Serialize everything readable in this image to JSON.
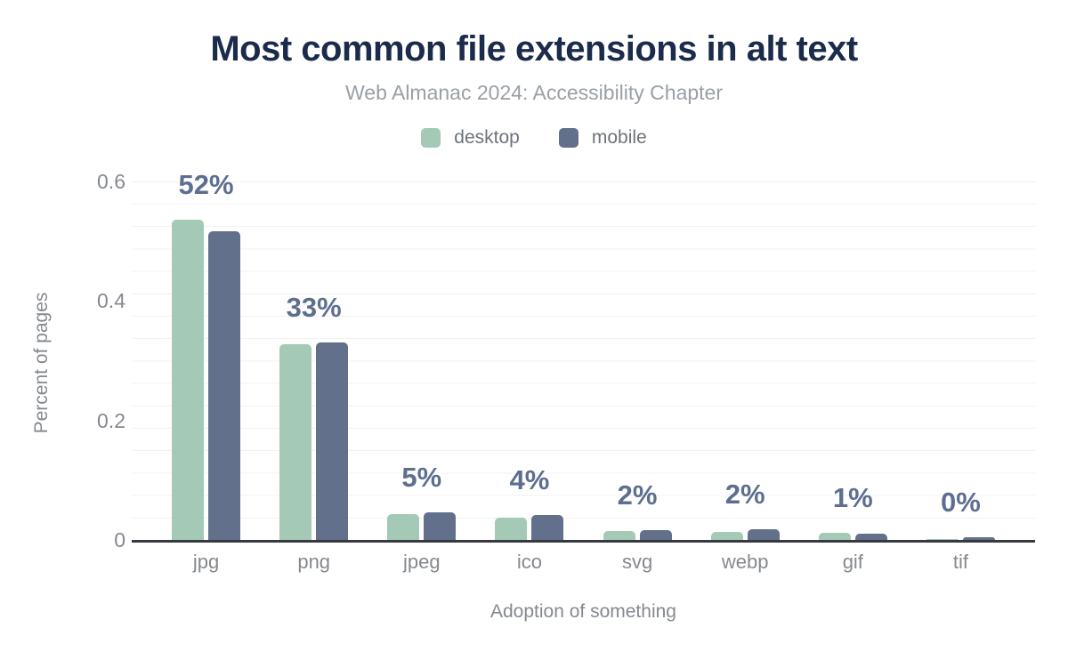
{
  "header": {
    "title": "Most common file extensions in alt text",
    "subtitle": "Web Almanac 2024: Accessibility Chapter"
  },
  "colors": {
    "title_text": "#1b2b4b",
    "subtitle_text": "#9aa0a6",
    "axis_text": "#85898f",
    "legend_text": "#6d737b",
    "value_label_text": "#5d6f91",
    "desktop_bar": "#a4c9b6",
    "mobile_bar": "#62708c",
    "axis_line": "#36393f",
    "gridline": "#f1f1f1"
  },
  "chart_data": {
    "type": "bar",
    "title": "Most common file extensions in alt text",
    "subtitle": "Web Almanac 2024: Accessibility Chapter",
    "categories": [
      "jpg",
      "png",
      "jpeg",
      "ico",
      "svg",
      "webp",
      "gif",
      "tif"
    ],
    "series": [
      {
        "name": "desktop",
        "color": "#a4c9b6",
        "values": [
          0.536,
          0.328,
          0.043,
          0.037,
          0.015,
          0.013,
          0.012,
          0.001
        ]
      },
      {
        "name": "mobile",
        "color": "#62708c",
        "values": [
          0.517,
          0.331,
          0.046,
          0.042,
          0.016,
          0.018,
          0.01,
          0.004
        ]
      }
    ],
    "bar_labels": [
      "52%",
      "33%",
      "5%",
      "4%",
      "2%",
      "2%",
      "1%",
      "0%"
    ],
    "xlabel": "Adoption of something",
    "ylabel": "Percent of pages",
    "yticks": [
      0,
      0.2,
      0.4,
      0.6
    ],
    "ylim": [
      0,
      0.63
    ],
    "grid": "horizontal-minor",
    "legend_position": "top-center"
  }
}
